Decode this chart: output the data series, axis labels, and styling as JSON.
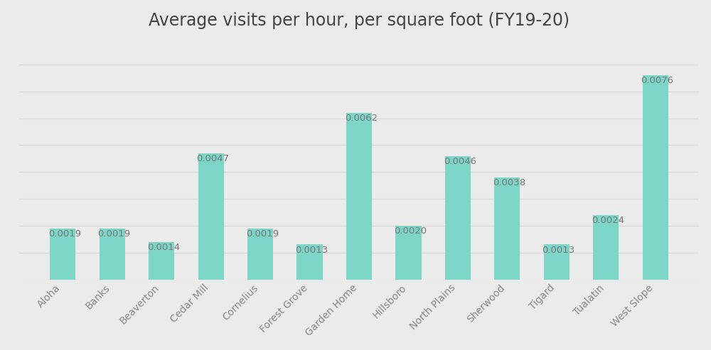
{
  "title": "Average visits per hour, per square foot (FY19-20)",
  "categories": [
    "Aloha",
    "Banks",
    "Beaverton",
    "Cedar Mill",
    "Cornelius",
    "Forest Grove",
    "Garden Home",
    "Hillsboro",
    "North Plains",
    "Sherwood",
    "Tigard",
    "Tualatin",
    "West Slope"
  ],
  "values": [
    0.0019,
    0.0019,
    0.0014,
    0.0047,
    0.0019,
    0.0013,
    0.0062,
    0.002,
    0.0046,
    0.0038,
    0.0013,
    0.0024,
    0.0076
  ],
  "bar_color": "#7DD5C8",
  "background_color": "#ebebeb",
  "title_fontsize": 17,
  "tick_label_fontsize": 10,
  "value_label_fontsize": 9.5,
  "ylim": [
    0,
    0.0088
  ],
  "grid_color": "#d8d8d8",
  "label_color": "#888888",
  "value_label_color": "#777777"
}
